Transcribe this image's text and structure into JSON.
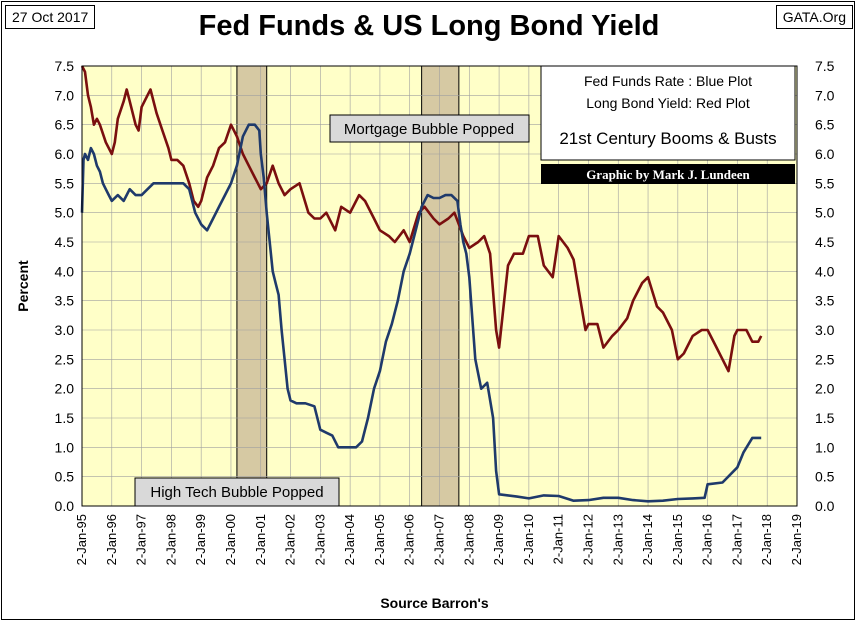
{
  "header": {
    "date": "27 Oct 2017",
    "title": "Fed Funds & US Long Bond Yield",
    "source_site": "GATA.Org"
  },
  "legend": {
    "line1": "Fed Funds Rate : Blue Plot",
    "line2": "Long Bond Yield: Red Plot",
    "line3": "21st Century Booms & Busts",
    "credit": "Graphic by Mark J. Lundeen"
  },
  "annotations": {
    "mortgage": "Mortgage Bubble Popped",
    "hightech": "High Tech Bubble Popped"
  },
  "colors": {
    "plot_bg": "#ffffc8",
    "fed_funds": "#1f3a6b",
    "long_bond": "#7a0f0f",
    "shade": "#d6c9a3",
    "grid": "#a0a0a0"
  },
  "chart_data": {
    "type": "line",
    "title": "Fed Funds & US Long Bond Yield",
    "xlabel": "Source Barron's",
    "ylabel": "Percent",
    "ylim": [
      0,
      7.5
    ],
    "xlim": [
      1995.0,
      2019.0
    ],
    "y_ticks": [
      "0.0",
      "0.5",
      "1.0",
      "1.5",
      "2.0",
      "2.5",
      "3.0",
      "3.5",
      "4.0",
      "4.5",
      "5.0",
      "5.5",
      "6.0",
      "6.5",
      "7.0",
      "7.5"
    ],
    "x_tick_labels": [
      "2-Jan-95",
      "2-Jan-96",
      "2-Jan-97",
      "2-Jan-98",
      "2-Jan-99",
      "2-Jan-00",
      "2-Jan-01",
      "2-Jan-02",
      "2-Jan-03",
      "2-Jan-04",
      "2-Jan-05",
      "2-Jan-06",
      "2-Jan-07",
      "2-Jan-08",
      "2-Jan-09",
      "2-Jan-10",
      "2-Jan-11",
      "2-Jan-12",
      "2-Jan-13",
      "2-Jan-14",
      "2-Jan-15",
      "2-Jan-16",
      "2-Jan-17",
      "2-Jan-18",
      "2-Jan-19"
    ],
    "shaded_periods": [
      {
        "label": "High Tech Bubble Popped",
        "x0": 2000.2,
        "x1": 2001.2
      },
      {
        "label": "Mortgage Bubble Popped",
        "x0": 2006.4,
        "x1": 2007.65
      }
    ],
    "series": [
      {
        "name": "Fed Funds Rate",
        "color": "blue",
        "x": [
          1995.0,
          1995.05,
          1995.1,
          1995.2,
          1995.3,
          1995.4,
          1995.5,
          1995.6,
          1995.7,
          1995.8,
          1995.9,
          1996.0,
          1996.2,
          1996.4,
          1996.6,
          1996.8,
          1997.0,
          1997.2,
          1997.4,
          1997.6,
          1997.8,
          1998.0,
          1998.2,
          1998.4,
          1998.6,
          1998.8,
          1999.0,
          1999.2,
          1999.4,
          1999.6,
          1999.8,
          2000.0,
          2000.2,
          2000.4,
          2000.6,
          2000.8,
          2000.95,
          2001.0,
          2001.1,
          2001.2,
          2001.3,
          2001.4,
          2001.5,
          2001.6,
          2001.7,
          2001.8,
          2001.9,
          2002.0,
          2002.2,
          2002.5,
          2002.8,
          2003.0,
          2003.2,
          2003.4,
          2003.6,
          2003.8,
          2004.0,
          2004.2,
          2004.4,
          2004.5,
          2004.6,
          2004.8,
          2005.0,
          2005.2,
          2005.4,
          2005.6,
          2005.8,
          2006.0,
          2006.2,
          2006.4,
          2006.6,
          2006.8,
          2007.0,
          2007.2,
          2007.4,
          2007.6,
          2007.7,
          2007.8,
          2007.9,
          2008.0,
          2008.1,
          2008.2,
          2008.4,
          2008.6,
          2008.8,
          2008.9,
          2009.0,
          2009.3,
          2009.6,
          2010.0,
          2010.5,
          2011.0,
          2011.5,
          2012.0,
          2012.5,
          2013.0,
          2013.5,
          2014.0,
          2014.5,
          2015.0,
          2015.5,
          2015.9,
          2016.0,
          2016.5,
          2017.0,
          2017.2,
          2017.5,
          2017.8
        ],
        "values": [
          5.0,
          5.9,
          6.0,
          5.9,
          6.1,
          6.0,
          5.8,
          5.7,
          5.5,
          5.4,
          5.3,
          5.2,
          5.3,
          5.2,
          5.4,
          5.3,
          5.3,
          5.4,
          5.5,
          5.5,
          5.5,
          5.5,
          5.5,
          5.5,
          5.4,
          5.0,
          4.8,
          4.7,
          4.9,
          5.1,
          5.3,
          5.5,
          5.8,
          6.3,
          6.5,
          6.5,
          6.4,
          6.0,
          5.6,
          5.0,
          4.5,
          4.0,
          3.8,
          3.6,
          3.0,
          2.5,
          2.0,
          1.8,
          1.75,
          1.75,
          1.7,
          1.3,
          1.25,
          1.2,
          1.0,
          1.0,
          1.0,
          1.0,
          1.1,
          1.3,
          1.5,
          2.0,
          2.3,
          2.8,
          3.1,
          3.5,
          4.0,
          4.3,
          4.7,
          5.1,
          5.3,
          5.25,
          5.25,
          5.3,
          5.3,
          5.2,
          4.8,
          4.5,
          4.3,
          3.9,
          3.2,
          2.5,
          2.0,
          2.1,
          1.5,
          0.6,
          0.2,
          0.18,
          0.16,
          0.13,
          0.18,
          0.17,
          0.09,
          0.1,
          0.14,
          0.14,
          0.1,
          0.08,
          0.09,
          0.12,
          0.13,
          0.14,
          0.37,
          0.4,
          0.66,
          0.91,
          1.16,
          1.16
        ]
      },
      {
        "name": "Long Bond Yield",
        "color": "red",
        "x": [
          1995.0,
          1995.1,
          1995.2,
          1995.3,
          1995.4,
          1995.5,
          1995.6,
          1995.8,
          1996.0,
          1996.1,
          1996.2,
          1996.4,
          1996.5,
          1996.6,
          1996.8,
          1996.9,
          1997.0,
          1997.2,
          1997.3,
          1997.5,
          1997.7,
          1997.9,
          1998.0,
          1998.2,
          1998.4,
          1998.6,
          1998.75,
          1998.9,
          1999.0,
          1999.2,
          1999.4,
          1999.6,
          1999.8,
          2000.0,
          2000.2,
          2000.4,
          2000.6,
          2000.8,
          2001.0,
          2001.2,
          2001.4,
          2001.6,
          2001.8,
          2002.0,
          2002.3,
          2002.6,
          2002.8,
          2003.0,
          2003.2,
          2003.5,
          2003.7,
          2004.0,
          2004.3,
          2004.5,
          2004.8,
          2005.0,
          2005.3,
          2005.5,
          2005.8,
          2006.0,
          2006.3,
          2006.5,
          2006.8,
          2007.0,
          2007.3,
          2007.5,
          2007.8,
          2008.0,
          2008.3,
          2008.5,
          2008.7,
          2008.9,
          2009.0,
          2009.3,
          2009.5,
          2009.8,
          2010.0,
          2010.3,
          2010.5,
          2010.8,
          2011.0,
          2011.3,
          2011.5,
          2011.7,
          2011.9,
          2012.0,
          2012.3,
          2012.5,
          2012.8,
          2013.0,
          2013.3,
          2013.5,
          2013.8,
          2014.0,
          2014.3,
          2014.5,
          2014.8,
          2015.0,
          2015.2,
          2015.5,
          2015.8,
          2016.0,
          2016.3,
          2016.5,
          2016.7,
          2016.9,
          2017.0,
          2017.3,
          2017.5,
          2017.7,
          2017.8
        ],
        "values": [
          7.5,
          7.4,
          7.0,
          6.8,
          6.5,
          6.6,
          6.5,
          6.2,
          6.0,
          6.2,
          6.6,
          6.9,
          7.1,
          6.9,
          6.5,
          6.4,
          6.8,
          7.0,
          7.1,
          6.7,
          6.4,
          6.1,
          5.9,
          5.9,
          5.8,
          5.5,
          5.2,
          5.1,
          5.2,
          5.6,
          5.8,
          6.1,
          6.2,
          6.5,
          6.3,
          6.0,
          5.8,
          5.6,
          5.4,
          5.5,
          5.8,
          5.5,
          5.3,
          5.4,
          5.5,
          5.0,
          4.9,
          4.9,
          5.0,
          4.7,
          5.1,
          5.0,
          5.3,
          5.2,
          4.9,
          4.7,
          4.6,
          4.5,
          4.7,
          4.5,
          5.0,
          5.1,
          4.9,
          4.8,
          4.9,
          5.0,
          4.6,
          4.4,
          4.5,
          4.6,
          4.3,
          3.0,
          2.7,
          4.1,
          4.3,
          4.3,
          4.6,
          4.6,
          4.1,
          3.9,
          4.6,
          4.4,
          4.2,
          3.6,
          3.0,
          3.1,
          3.1,
          2.7,
          2.9,
          3.0,
          3.2,
          3.5,
          3.8,
          3.9,
          3.4,
          3.3,
          3.0,
          2.5,
          2.6,
          2.9,
          3.0,
          3.0,
          2.7,
          2.5,
          2.3,
          2.9,
          3.0,
          3.0,
          2.8,
          2.8,
          2.9
        ]
      }
    ]
  }
}
